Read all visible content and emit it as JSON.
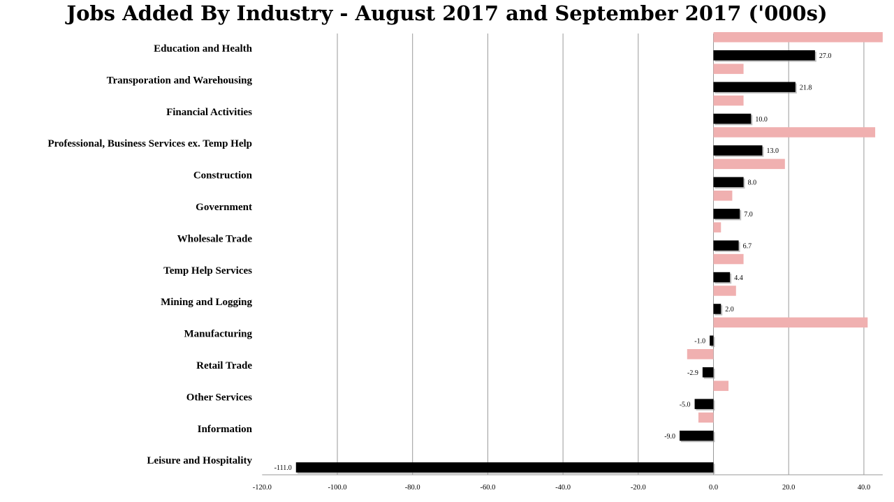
{
  "chart_data": {
    "type": "bar",
    "orientation": "horizontal",
    "title": "Jobs Added By Industry - August  2017 and September 2017 ('000s)",
    "categories": [
      "Education and Health",
      "Transporation and Warehousing",
      "Financial Activities",
      "Professional, Business Services ex. Temp Help",
      "Construction",
      "Government",
      "Wholesale Trade",
      "Temp Help Services",
      "Mining and Logging",
      "Manufacturing",
      "Retail Trade",
      "Other Services",
      "Information",
      "Leisure and Hospitality"
    ],
    "series": [
      {
        "color": "#f0b0b0",
        "values": [
          45,
          8,
          8,
          43,
          19,
          5,
          2,
          8,
          6,
          41,
          -7,
          4,
          -4,
          0
        ],
        "labels_shown": false
      },
      {
        "color": "#000000",
        "values": [
          27.0,
          21.8,
          10.0,
          13.0,
          8.0,
          7.0,
          6.7,
          4.4,
          2.0,
          -1.0,
          -2.9,
          -5.0,
          -9.0,
          -111.0
        ],
        "value_labels": [
          "27.0",
          "21.8",
          "10.0",
          "13.0",
          "8.0",
          "7.0",
          "6.7",
          "4.4",
          "2.0",
          "-1.0",
          "-2.9",
          "-5.0",
          "-9.0",
          "-111.0"
        ],
        "labels_shown": true
      }
    ],
    "xlim": [
      -120,
      45
    ],
    "xticks": [
      -120,
      -100,
      -80,
      -60,
      -40,
      -20,
      0,
      20,
      40
    ],
    "xtick_labels": [
      "-120.0",
      "-100.0",
      "-80.0",
      "-60.0",
      "-40.0",
      "-20.0",
      "0.0",
      "20.0",
      "40.0"
    ],
    "xlabel": "",
    "ylabel": "",
    "grid": "vertical",
    "legend": "none"
  }
}
